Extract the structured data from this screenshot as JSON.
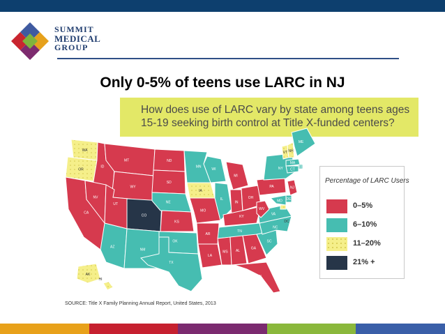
{
  "brand": {
    "line1": "SUMMIT",
    "line2": "MEDICAL",
    "line3": "GROUP"
  },
  "slide_title": "Only 0-5% of teens use LARC in NJ",
  "map_heading": "How does use of LARC vary by state among teens ages 15-19 seeking birth control at Title X-funded centers?",
  "legend": {
    "title": "Percentage of LARC Users",
    "items": [
      {
        "label": "0–5%",
        "color": "#d63a4e",
        "pattern": "solid"
      },
      {
        "label": "6–10%",
        "color": "#46bdb1",
        "pattern": "solid"
      },
      {
        "label": "11–20%",
        "color": "#f5ef8a",
        "pattern": "dotted"
      },
      {
        "label": "21% +",
        "color": "#263548",
        "pattern": "solid"
      }
    ]
  },
  "states": [
    {
      "abbr": "WA",
      "bin": "11–20%"
    },
    {
      "abbr": "OR",
      "bin": "11–20%"
    },
    {
      "abbr": "CA",
      "bin": "0–5%"
    },
    {
      "abbr": "ID",
      "bin": "0–5%"
    },
    {
      "abbr": "NV",
      "bin": "0–5%"
    },
    {
      "abbr": "MT",
      "bin": "0–5%"
    },
    {
      "abbr": "WY",
      "bin": "0–5%"
    },
    {
      "abbr": "UT",
      "bin": "0–5%"
    },
    {
      "abbr": "AZ",
      "bin": "6–10%"
    },
    {
      "abbr": "CO",
      "bin": "21% +"
    },
    {
      "abbr": "NM",
      "bin": "6–10%"
    },
    {
      "abbr": "ND",
      "bin": "0–5%"
    },
    {
      "abbr": "SD",
      "bin": "0–5%"
    },
    {
      "abbr": "NE",
      "bin": "6–10%"
    },
    {
      "abbr": "KS",
      "bin": "0–5%"
    },
    {
      "abbr": "OK",
      "bin": "6–10%"
    },
    {
      "abbr": "TX",
      "bin": "6–10%"
    },
    {
      "abbr": "MN",
      "bin": "6–10%"
    },
    {
      "abbr": "IA",
      "bin": "11–20%"
    },
    {
      "abbr": "MO",
      "bin": "0–5%"
    },
    {
      "abbr": "AR",
      "bin": "0–5%"
    },
    {
      "abbr": "LA",
      "bin": "0–5%"
    },
    {
      "abbr": "WI",
      "bin": "6–10%"
    },
    {
      "abbr": "IL",
      "bin": "6–10%"
    },
    {
      "abbr": "MI",
      "bin": "0–5%"
    },
    {
      "abbr": "IN",
      "bin": "0–5%"
    },
    {
      "abbr": "OH",
      "bin": "0–5%"
    },
    {
      "abbr": "KY",
      "bin": "0–5%"
    },
    {
      "abbr": "TN",
      "bin": "6–10%"
    },
    {
      "abbr": "MS",
      "bin": "0–5%"
    },
    {
      "abbr": "AL",
      "bin": "0–5%"
    },
    {
      "abbr": "GA",
      "bin": "0–5%"
    },
    {
      "abbr": "FL",
      "bin": "0–5%"
    },
    {
      "abbr": "SC",
      "bin": "6–10%"
    },
    {
      "abbr": "NC",
      "bin": "6–10%"
    },
    {
      "abbr": "VA",
      "bin": "6–10%"
    },
    {
      "abbr": "WV",
      "bin": "0–5%"
    },
    {
      "abbr": "PA",
      "bin": "0–5%"
    },
    {
      "abbr": "NY",
      "bin": "6–10%"
    },
    {
      "abbr": "VT",
      "bin": "11–20%"
    },
    {
      "abbr": "NH",
      "bin": "11–20%"
    },
    {
      "abbr": "ME",
      "bin": "6–10%"
    },
    {
      "abbr": "MA",
      "bin": "6–10%"
    },
    {
      "abbr": "RI",
      "bin": "6–10%"
    },
    {
      "abbr": "CT",
      "bin": "6–10%"
    },
    {
      "abbr": "NJ",
      "bin": "0–5%"
    },
    {
      "abbr": "DE",
      "bin": "6–10%"
    },
    {
      "abbr": "MD",
      "bin": "6–10%"
    },
    {
      "abbr": "DC",
      "bin": "11–20%"
    },
    {
      "abbr": "AK",
      "bin": "11–20%"
    },
    {
      "abbr": "HI",
      "bin": "11–20%"
    }
  ],
  "source": "SOURCE: Title X Family Planning Annual Report, United States, 2013",
  "footer_colors": [
    "#e8a11a",
    "#c6202f",
    "#7b2a6f",
    "#8ab83c",
    "#3a5fa8"
  ]
}
